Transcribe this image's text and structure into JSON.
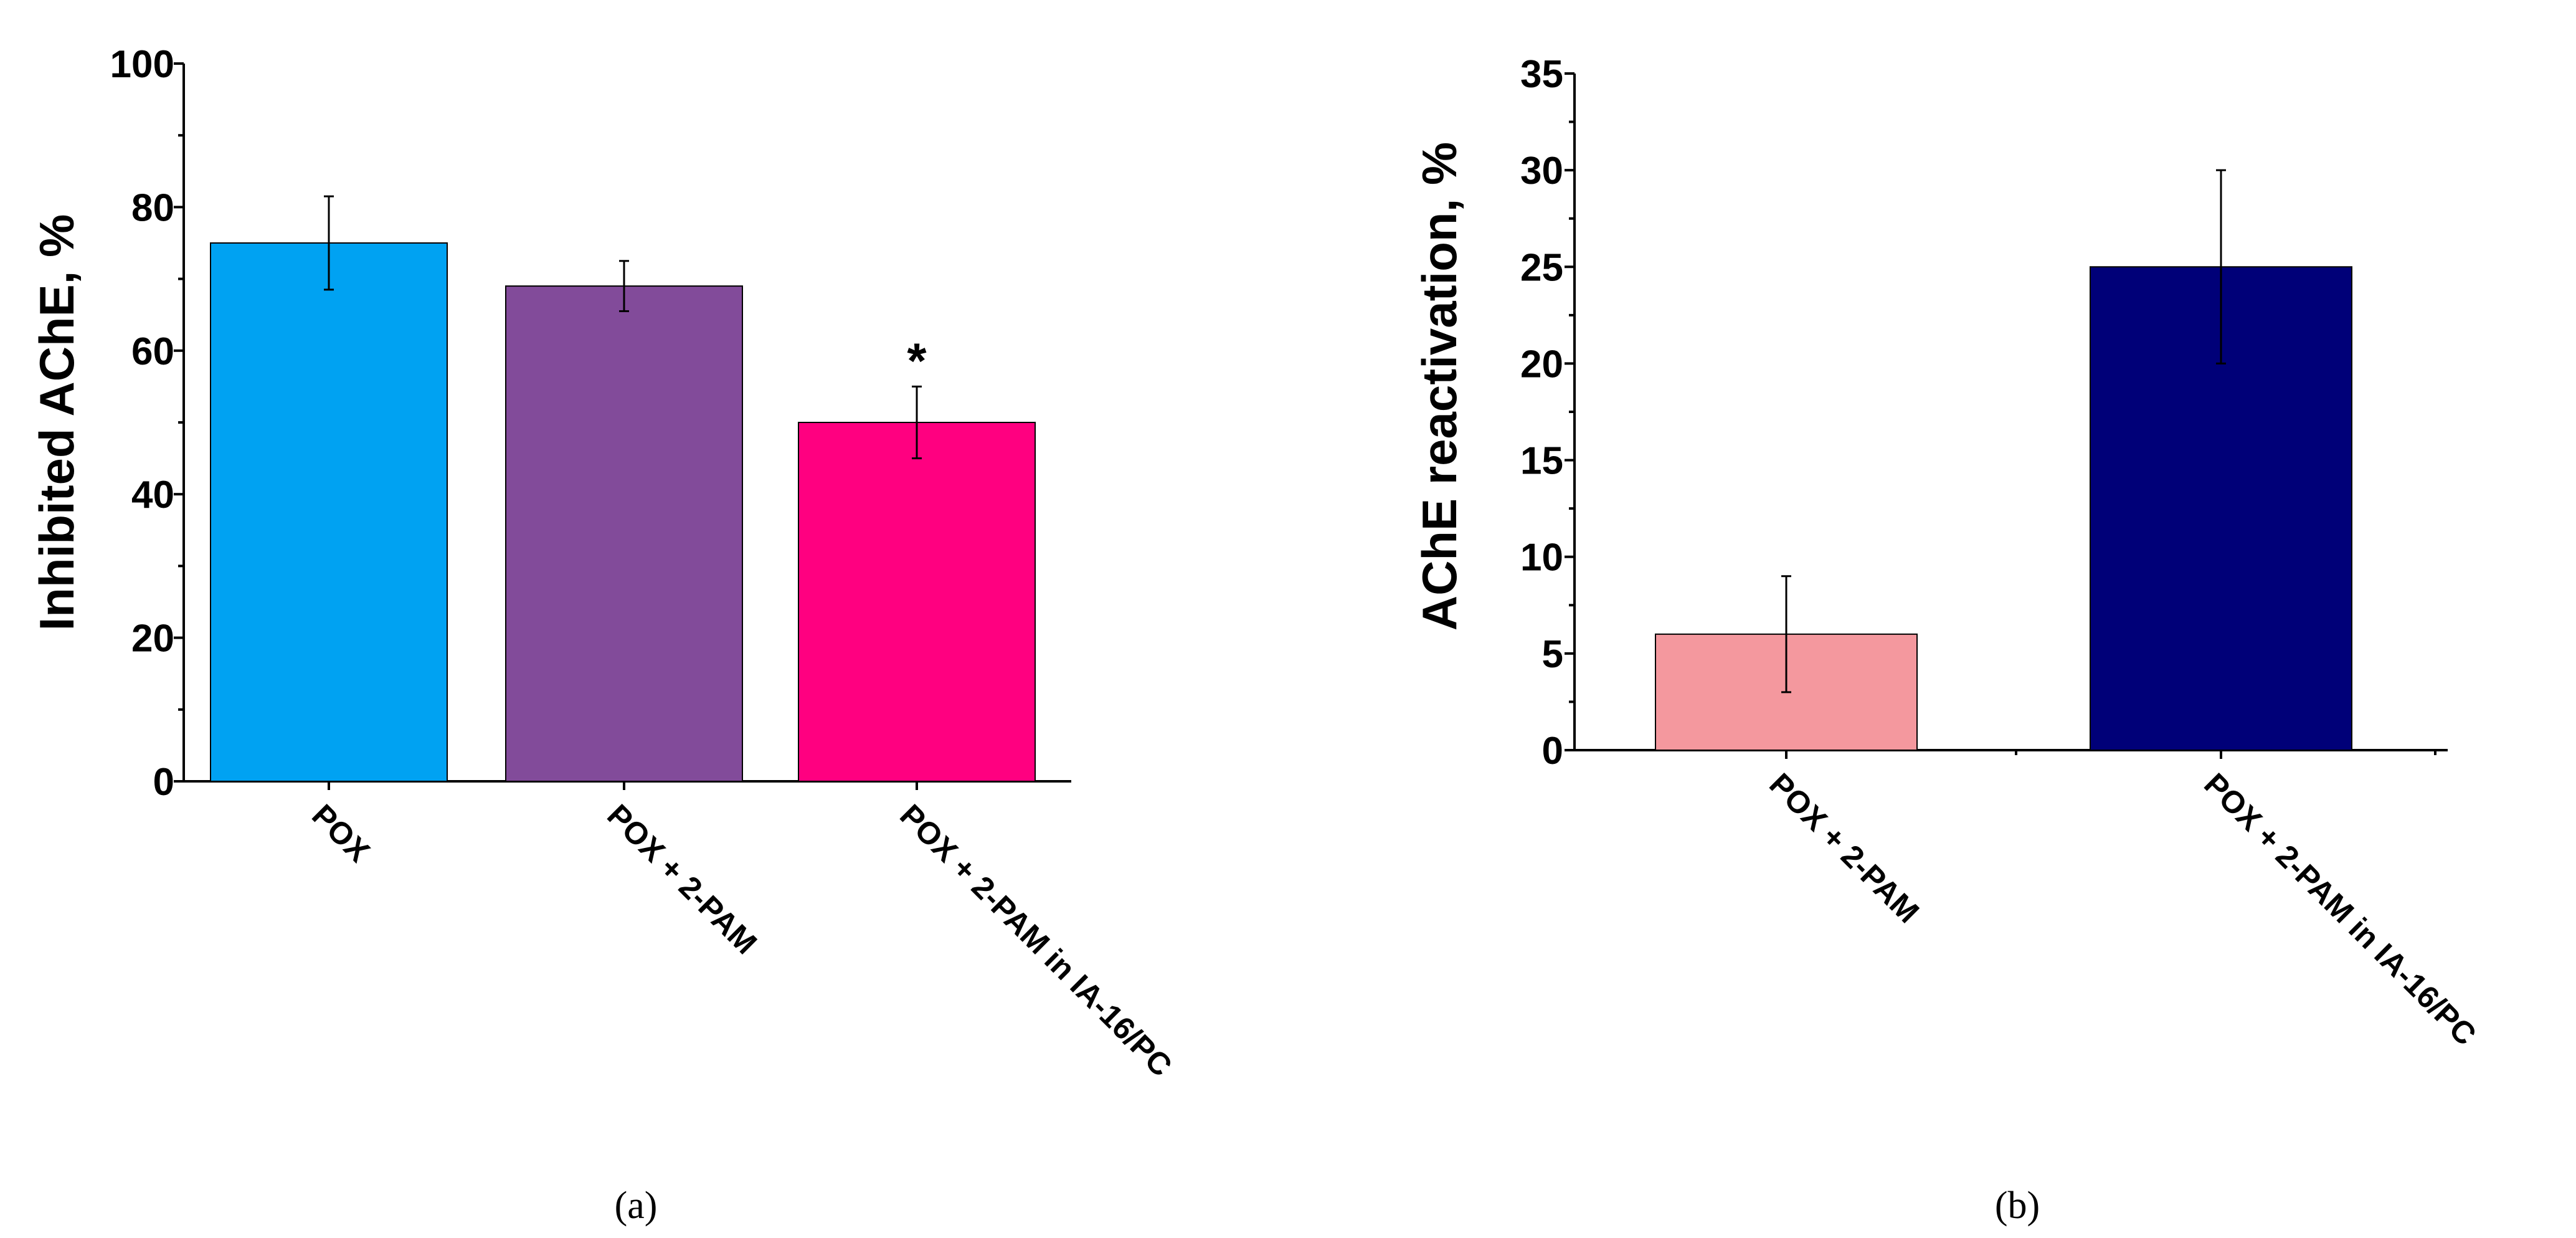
{
  "chart_data": [
    {
      "type": "bar",
      "panel_label": "(a)",
      "categories": [
        "POX",
        "POX + 2-PAM",
        "POX + 2-PAM in IA-16/PC"
      ],
      "values": [
        75,
        69,
        50
      ],
      "errors": [
        6.5,
        3.5,
        5
      ],
      "colors": [
        "#00A2F2",
        "#824B9A",
        "#FF0080"
      ],
      "annotations": [
        "",
        "",
        "*"
      ],
      "ylabel": "Inhibited AChE, %",
      "xlabel": "",
      "ylim": [
        0,
        100
      ],
      "yticks": [
        0,
        20,
        40,
        60,
        80,
        100
      ],
      "grid": false
    },
    {
      "type": "bar",
      "panel_label": "(b)",
      "categories": [
        "POX + 2-PAM",
        "POX + 2-PAM in IA-16/PC"
      ],
      "values": [
        6,
        25
      ],
      "errors": [
        3,
        5
      ],
      "colors": [
        "#F4989E",
        "#000078"
      ],
      "annotations": [
        "",
        ""
      ],
      "ylabel": "AChE reactivation, %",
      "xlabel": "",
      "ylim": [
        0,
        35
      ],
      "yticks": [
        0,
        5,
        10,
        15,
        20,
        25,
        30,
        35
      ],
      "grid": false
    }
  ]
}
